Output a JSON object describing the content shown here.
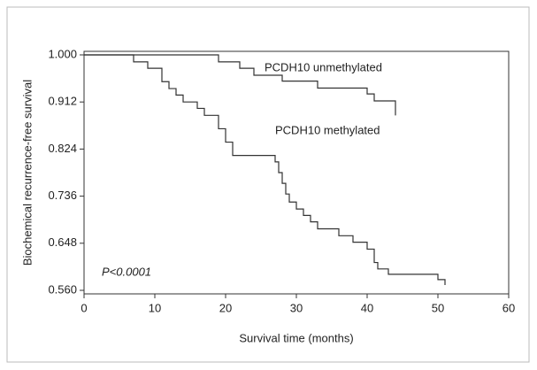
{
  "chart_data": {
    "type": "line",
    "x_label": "Survival time (months)",
    "y_label": "Biochemical recurrence-free survival",
    "annotations": [
      "P<0.0001"
    ],
    "xlim": [
      0,
      60
    ],
    "xticks": [
      0,
      10,
      20,
      30,
      40,
      50,
      60
    ],
    "ylim": [
      0.56,
      1.0
    ],
    "yticks": [
      {
        "value": 0.56,
        "label": "0.560"
      },
      0.648,
      0.736,
      0.824,
      0.912,
      {
        "value": 1.0,
        "label": "1.000"
      }
    ],
    "step": true,
    "series": [
      {
        "name": "PCDH10 unmethylated",
        "color": "#333333",
        "x": [
          0,
          19,
          22,
          24,
          28,
          33,
          40,
          41,
          44
        ],
        "values": [
          1.0,
          0.987,
          0.975,
          0.962,
          0.951,
          0.938,
          0.927,
          0.914,
          0.887
        ]
      },
      {
        "name": "PCDH10 methylated",
        "color": "#333333",
        "x": [
          0,
          7,
          9,
          11,
          12,
          13,
          14,
          16,
          17,
          19,
          20,
          21,
          27,
          27.5,
          28,
          28.5,
          29,
          30,
          31,
          32,
          33,
          36,
          38,
          40,
          41,
          41.5,
          43,
          50,
          51
        ],
        "values": [
          1.0,
          0.987,
          0.975,
          0.95,
          0.937,
          0.925,
          0.912,
          0.9,
          0.887,
          0.862,
          0.837,
          0.812,
          0.8,
          0.78,
          0.76,
          0.74,
          0.725,
          0.712,
          0.7,
          0.688,
          0.675,
          0.662,
          0.65,
          0.637,
          0.612,
          0.6,
          0.59,
          0.58,
          0.57
        ]
      }
    ]
  }
}
